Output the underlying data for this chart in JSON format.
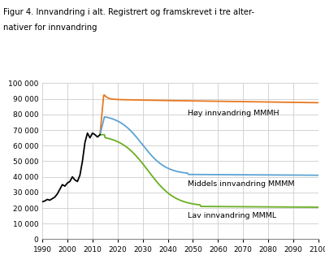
{
  "title_line1": "Figur 4. Innvandring i alt. Registrert og framskrevet i tre alter-",
  "title_line2": "nativer for innvandring",
  "xlim": [
    1990,
    2100
  ],
  "ylim": [
    0,
    100000
  ],
  "yticks": [
    0,
    10000,
    20000,
    30000,
    40000,
    50000,
    60000,
    70000,
    80000,
    90000,
    100000
  ],
  "xticks": [
    1990,
    2000,
    2010,
    2020,
    2030,
    2040,
    2050,
    2060,
    2070,
    2080,
    2090,
    2100
  ],
  "line_colors": {
    "historical": "#000000",
    "high": "#E87820",
    "medium": "#5BA3D4",
    "low": "#6AAF23"
  },
  "labels": {
    "high": "Høy innvandring MMMH",
    "medium": "Middels innvandring MMMM",
    "low": "Lav innvandring MMML"
  },
  "label_positions": {
    "high": [
      2048,
      83000
    ],
    "medium": [
      2048,
      37500
    ],
    "low": [
      2048,
      17500
    ]
  },
  "background_color": "#ffffff",
  "grid_color": "#cccccc"
}
